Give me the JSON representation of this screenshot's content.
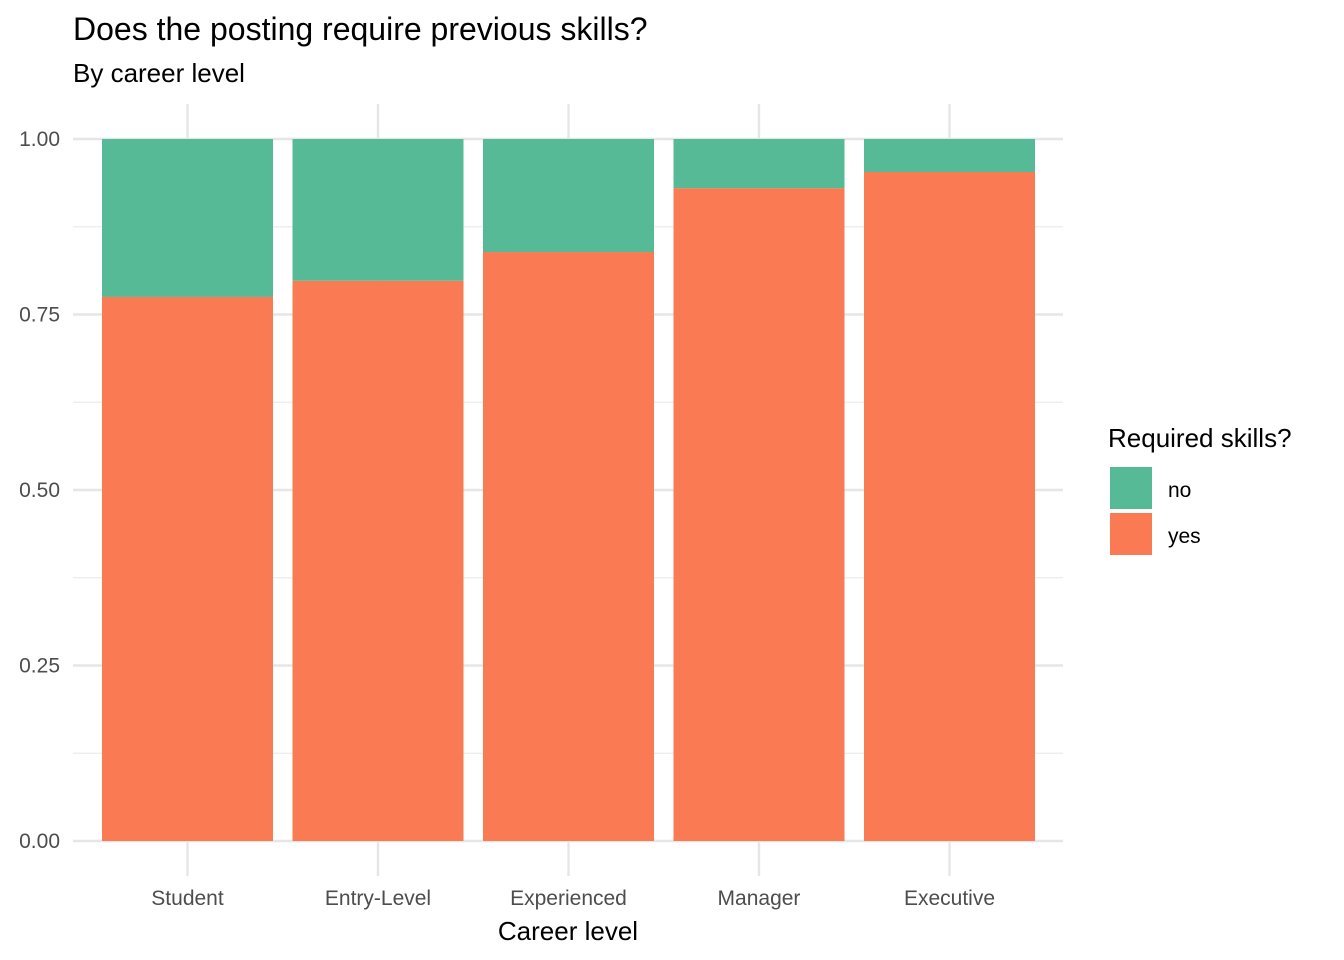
{
  "chart_data": {
    "type": "bar",
    "stacked": true,
    "position": "fill",
    "title": "Does the posting require previous skills?",
    "subtitle": "By career level",
    "xlabel": "Career level",
    "ylabel": "",
    "ylim": [
      0,
      1
    ],
    "yticks": [
      "0.00",
      "0.25",
      "0.50",
      "0.75",
      "1.00"
    ],
    "categories": [
      "Student",
      "Entry-Level",
      "Experienced",
      "Manager",
      "Executive"
    ],
    "series": [
      {
        "name": "yes",
        "color": "#FA7A54",
        "values": [
          0.775,
          0.798,
          0.839,
          0.93,
          0.953
        ]
      },
      {
        "name": "no",
        "color": "#56BA96",
        "values": [
          0.225,
          0.202,
          0.161,
          0.07,
          0.047
        ]
      }
    ],
    "legend": {
      "title": "Required skills?",
      "placement": "right",
      "items": [
        {
          "label": "no",
          "color": "#56BA96"
        },
        {
          "label": "yes",
          "color": "#FA7A54"
        }
      ]
    },
    "grid": true
  }
}
